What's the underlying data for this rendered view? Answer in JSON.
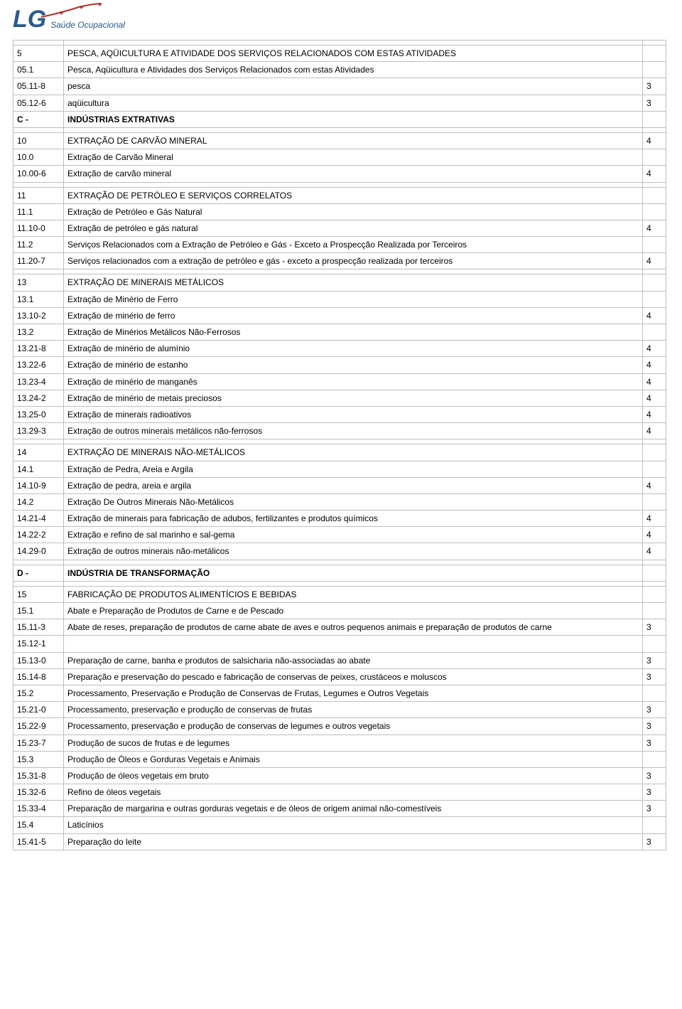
{
  "logo": {
    "mark": "LG",
    "sub": "Saúde Ocupacional"
  },
  "table": {
    "col_widths": {
      "code": 60,
      "risk": 22
    },
    "rows": [
      {
        "code": "",
        "desc": "",
        "risk": ""
      },
      {
        "code": "5",
        "desc": "PESCA, AQÜICULTURA E ATIVIDADE DOS SERVIÇOS RELACIONADOS COM ESTAS ATIVIDADES",
        "risk": ""
      },
      {
        "code": "05.1",
        "desc": "Pesca, Aqüicultura e Atividades dos Serviços Relacionados com estas Atividades",
        "risk": ""
      },
      {
        "code": "05.11-8",
        "desc": "pesca",
        "risk": "3"
      },
      {
        "code": "05.12-6",
        "desc": "aqüicultura",
        "risk": "3"
      },
      {
        "code": "C -",
        "desc": "INDÚSTRIAS EXTRATIVAS",
        "risk": "",
        "bold": true
      },
      {
        "code": "",
        "desc": "",
        "risk": ""
      },
      {
        "code": "10",
        "desc": "EXTRAÇÃO DE CARVÃO MINERAL",
        "risk": "4"
      },
      {
        "code": "10.0",
        "desc": "Extração de Carvão Mineral",
        "risk": ""
      },
      {
        "code": "10.00-6",
        "desc": "Extração de carvão mineral",
        "risk": "4"
      },
      {
        "code": "",
        "desc": "",
        "risk": ""
      },
      {
        "code": "11",
        "desc": "EXTRAÇÃO DE PETRÓLEO E SERVIÇOS CORRELATOS",
        "risk": ""
      },
      {
        "code": "11.1",
        "desc": "Extração de Petróleo e Gás Natural",
        "risk": ""
      },
      {
        "code": "11.10-0",
        "desc": "Extração de petróleo e gás natural",
        "risk": "4"
      },
      {
        "code": "11.2",
        "desc": "Serviços Relacionados com a Extração de Petróleo e Gás - Exceto a Prospecção Realizada por Terceiros",
        "risk": ""
      },
      {
        "code": "11.20-7",
        "desc": "Serviços relacionados com a extração de petróleo e gás - exceto a prospecção realizada por terceiros",
        "risk": "4"
      },
      {
        "code": "",
        "desc": "",
        "risk": ""
      },
      {
        "code": "13",
        "desc": "EXTRAÇÃO DE MINERAIS METÁLICOS",
        "risk": ""
      },
      {
        "code": "13.1",
        "desc": "Extração de Minério de Ferro",
        "risk": ""
      },
      {
        "code": "13.10-2",
        "desc": "Extração de minério de ferro",
        "risk": "4"
      },
      {
        "code": "13.2",
        "desc": "Extração de Minérios Metálicos Não-Ferrosos",
        "risk": ""
      },
      {
        "code": "13.21-8",
        "desc": "Extração de minério de alumínio",
        "risk": "4"
      },
      {
        "code": "13.22-6",
        "desc": "Extração de minério de estanho",
        "risk": "4"
      },
      {
        "code": "13.23-4",
        "desc": "Extração de minério de manganês",
        "risk": "4"
      },
      {
        "code": "13.24-2",
        "desc": "Extração de minério de metais preciosos",
        "risk": "4"
      },
      {
        "code": "13.25-0",
        "desc": "Extração de minerais radioativos",
        "risk": "4"
      },
      {
        "code": "13.29-3",
        "desc": "Extração de outros minerais metálicos não-ferrosos",
        "risk": "4"
      },
      {
        "code": "",
        "desc": "",
        "risk": ""
      },
      {
        "code": "14",
        "desc": "EXTRAÇÃO DE MINERAIS NÃO-METÁLICOS",
        "risk": ""
      },
      {
        "code": "14.1",
        "desc": "Extração de Pedra, Areia e Argila",
        "risk": ""
      },
      {
        "code": "14.10-9",
        "desc": "Extração de pedra, areia e argila",
        "risk": "4"
      },
      {
        "code": "14.2",
        "desc": "Extração De Outros Minerais Não-Metálicos",
        "risk": ""
      },
      {
        "code": "14.21-4",
        "desc": "Extração de minerais para fabricação de adubos, fertilizantes e produtos químicos",
        "risk": "4"
      },
      {
        "code": "14.22-2",
        "desc": "Extração e refino de sal marinho e sal-gema",
        "risk": "4"
      },
      {
        "code": "14.29-0",
        "desc": "Extração de outros minerais não-metálicos",
        "risk": "4"
      },
      {
        "code": "",
        "desc": "",
        "risk": ""
      },
      {
        "code": "D -",
        "desc": "INDÚSTRIA DE TRANSFORMAÇÃO",
        "risk": "",
        "bold": true
      },
      {
        "code": "",
        "desc": "",
        "risk": ""
      },
      {
        "code": "15",
        "desc": "FABRICAÇÃO DE PRODUTOS ALIMENTÍCIOS E BEBIDAS",
        "risk": ""
      },
      {
        "code": "15.1",
        "desc": "Abate e Preparação de Produtos de Carne e de Pescado",
        "risk": ""
      },
      {
        "code": "15.11-3",
        "desc": "Abate de reses, preparação de produtos de carne abate de aves e outros pequenos animais e preparação de produtos de carne",
        "risk": "3"
      },
      {
        "code": "15.12-1",
        "desc": "",
        "risk": ""
      },
      {
        "code": "15.13-0",
        "desc": "Preparação de carne, banha e produtos de salsicharia não-associadas ao abate",
        "risk": "3"
      },
      {
        "code": "15.14-8",
        "desc": "Preparação e preservação do pescado e fabricação de conservas de peixes, crustáceos e moluscos",
        "risk": "3"
      },
      {
        "code": "15.2",
        "desc": "Processamento, Preservação e Produção de Conservas de Frutas, Legumes e Outros Vegetais",
        "risk": ""
      },
      {
        "code": "15.21-0",
        "desc": "Processamento, preservação e produção de conservas de frutas",
        "risk": "3"
      },
      {
        "code": "15.22-9",
        "desc": "Processamento, preservação e produção de conservas de legumes e outros vegetais",
        "risk": "3"
      },
      {
        "code": "15.23-7",
        "desc": "Produção de sucos de frutas e de legumes",
        "risk": "3"
      },
      {
        "code": "15.3",
        "desc": "Produção de Óleos e Gorduras Vegetais e Animais",
        "risk": ""
      },
      {
        "code": "15.31-8",
        "desc": "Produção de óleos vegetais em bruto",
        "risk": "3"
      },
      {
        "code": "15.32-6",
        "desc": "Refino de óleos vegetais",
        "risk": "3"
      },
      {
        "code": "15.33-4",
        "desc": "Preparação de margarina e outras gorduras vegetais e de óleos de origem animal não-comestíveis",
        "risk": "3"
      },
      {
        "code": "15.4",
        "desc": "Laticínios",
        "risk": ""
      },
      {
        "code": "15.41-5",
        "desc": "Preparação do leite",
        "risk": "3"
      }
    ]
  }
}
